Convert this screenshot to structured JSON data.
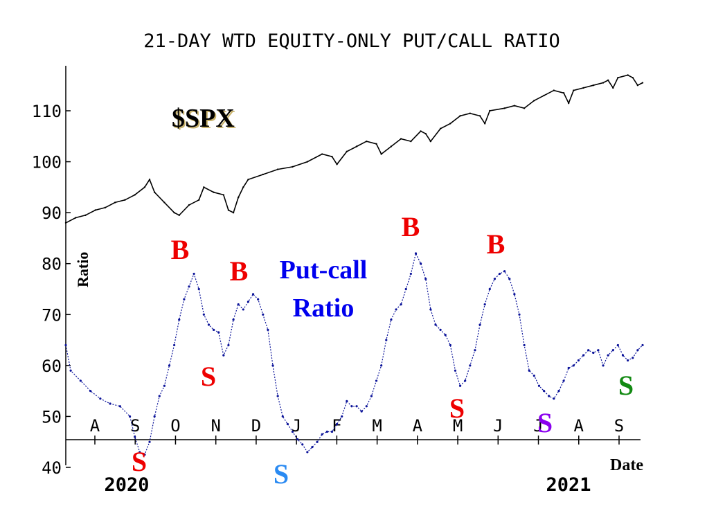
{
  "chart_data": {
    "type": "line",
    "title": "21-DAY WTD EQUITY-ONLY PUT/CALL RATIO",
    "ylabel": "Ratio",
    "xlabel": "Date",
    "ylim": [
      40,
      118
    ],
    "yticks": [
      40,
      50,
      60,
      70,
      80,
      90,
      100,
      110
    ],
    "x_months": [
      "A",
      "S",
      "O",
      "N",
      "D",
      "J",
      "F",
      "M",
      "A",
      "M",
      "J",
      "J",
      "A",
      "S"
    ],
    "years": [
      "2020",
      "2021"
    ],
    "grid": false,
    "series": [
      {
        "name": "$SPX",
        "color": "#000000",
        "points": [
          [
            0,
            88
          ],
          [
            2,
            89
          ],
          [
            4,
            89.5
          ],
          [
            6,
            90.5
          ],
          [
            8,
            91
          ],
          [
            10,
            92
          ],
          [
            12,
            92.5
          ],
          [
            14,
            93.5
          ],
          [
            16,
            95
          ],
          [
            17,
            96.5
          ],
          [
            18,
            94
          ],
          [
            20,
            92
          ],
          [
            22,
            90
          ],
          [
            23,
            89.5
          ],
          [
            25,
            91.5
          ],
          [
            27,
            92.5
          ],
          [
            28,
            95
          ],
          [
            30,
            94
          ],
          [
            32,
            93.5
          ],
          [
            33,
            90.5
          ],
          [
            34,
            90
          ],
          [
            35,
            93
          ],
          [
            36,
            95
          ],
          [
            37,
            96.5
          ],
          [
            40,
            97.5
          ],
          [
            43,
            98.5
          ],
          [
            46,
            99
          ],
          [
            49,
            100
          ],
          [
            52,
            101.5
          ],
          [
            54,
            101
          ],
          [
            55,
            99.5
          ],
          [
            57,
            102
          ],
          [
            59,
            103
          ],
          [
            61,
            104
          ],
          [
            63,
            103.5
          ],
          [
            64,
            101.5
          ],
          [
            66,
            103
          ],
          [
            68,
            104.5
          ],
          [
            70,
            104
          ],
          [
            72,
            106
          ],
          [
            73,
            105.5
          ],
          [
            74,
            104
          ],
          [
            76,
            106.5
          ],
          [
            78,
            107.5
          ],
          [
            80,
            109
          ],
          [
            82,
            109.5
          ],
          [
            84,
            109
          ],
          [
            85,
            107.5
          ],
          [
            86,
            110
          ],
          [
            89,
            110.5
          ],
          [
            91,
            111
          ],
          [
            93,
            110.5
          ],
          [
            95,
            112
          ],
          [
            97,
            113
          ],
          [
            99,
            114
          ],
          [
            101,
            113.5
          ],
          [
            102,
            111.5
          ],
          [
            103,
            114
          ],
          [
            105,
            114.5
          ],
          [
            107,
            115
          ],
          [
            109,
            115.5
          ],
          [
            110,
            116
          ],
          [
            111,
            114.5
          ],
          [
            112,
            116.5
          ],
          [
            114,
            117
          ],
          [
            115,
            116.5
          ],
          [
            116,
            115
          ],
          [
            117,
            115.5
          ]
        ]
      },
      {
        "name": "Put-call Ratio",
        "color": "#0b1399",
        "points": [
          [
            0,
            64
          ],
          [
            1,
            59
          ],
          [
            3,
            57
          ],
          [
            5,
            55
          ],
          [
            7,
            53.5
          ],
          [
            9,
            52.5
          ],
          [
            11,
            52
          ],
          [
            13,
            50
          ],
          [
            14,
            46
          ],
          [
            15,
            43
          ],
          [
            16,
            42.5
          ],
          [
            17,
            45
          ],
          [
            18,
            50
          ],
          [
            19,
            54
          ],
          [
            20,
            56
          ],
          [
            21,
            60
          ],
          [
            22,
            64
          ],
          [
            23,
            69
          ],
          [
            24,
            73
          ],
          [
            25,
            75.5
          ],
          [
            26,
            78
          ],
          [
            27,
            75
          ],
          [
            28,
            70
          ],
          [
            29,
            68
          ],
          [
            30,
            67
          ],
          [
            31,
            66.5
          ],
          [
            32,
            62
          ],
          [
            33,
            64
          ],
          [
            34,
            69
          ],
          [
            35,
            72
          ],
          [
            36,
            71
          ],
          [
            37,
            72.5
          ],
          [
            38,
            74
          ],
          [
            39,
            73
          ],
          [
            40,
            70
          ],
          [
            41,
            67
          ],
          [
            42,
            60
          ],
          [
            43,
            54
          ],
          [
            44,
            50
          ],
          [
            45,
            48.5
          ],
          [
            46,
            47
          ],
          [
            47,
            45.5
          ],
          [
            48,
            44.5
          ],
          [
            49,
            43
          ],
          [
            50,
            44
          ],
          [
            51,
            45
          ],
          [
            52,
            46.5
          ],
          [
            53,
            47
          ],
          [
            54,
            47
          ],
          [
            55,
            48.5
          ],
          [
            56,
            50
          ],
          [
            57,
            53
          ],
          [
            58,
            52
          ],
          [
            59,
            52
          ],
          [
            60,
            51
          ],
          [
            61,
            52
          ],
          [
            62,
            54
          ],
          [
            63,
            57
          ],
          [
            64,
            60
          ],
          [
            65,
            65
          ],
          [
            66,
            69
          ],
          [
            67,
            71
          ],
          [
            68,
            72
          ],
          [
            69,
            75
          ],
          [
            70,
            78
          ],
          [
            71,
            82
          ],
          [
            72,
            80
          ],
          [
            73,
            77
          ],
          [
            74,
            71
          ],
          [
            75,
            68
          ],
          [
            76,
            67
          ],
          [
            77,
            66
          ],
          [
            78,
            64
          ],
          [
            79,
            59
          ],
          [
            80,
            56
          ],
          [
            81,
            57
          ],
          [
            82,
            60
          ],
          [
            83,
            63
          ],
          [
            84,
            68
          ],
          [
            85,
            72
          ],
          [
            86,
            75
          ],
          [
            87,
            77
          ],
          [
            88,
            78
          ],
          [
            89,
            78.5
          ],
          [
            90,
            77
          ],
          [
            91,
            74
          ],
          [
            92,
            70
          ],
          [
            93,
            64
          ],
          [
            94,
            59
          ],
          [
            95,
            58
          ],
          [
            96,
            56
          ],
          [
            97,
            55
          ],
          [
            98,
            54
          ],
          [
            99,
            53.5
          ],
          [
            100,
            55
          ],
          [
            101,
            57
          ],
          [
            102,
            59.5
          ],
          [
            103,
            60
          ],
          [
            104,
            61
          ],
          [
            105,
            62
          ],
          [
            106,
            63
          ],
          [
            107,
            62.5
          ],
          [
            108,
            63
          ],
          [
            109,
            60
          ],
          [
            110,
            62
          ],
          [
            111,
            63
          ],
          [
            112,
            64
          ],
          [
            113,
            62
          ],
          [
            114,
            61
          ],
          [
            115,
            61.5
          ],
          [
            116,
            63
          ],
          [
            117,
            64
          ]
        ]
      }
    ],
    "annotations": [
      {
        "text": "$SPX",
        "color": "#000000"
      },
      {
        "text": "Put-call",
        "color": "#0000ee"
      },
      {
        "text": "Ratio",
        "color": "#0000ee"
      },
      {
        "text": "B",
        "color": "#ee0000"
      },
      {
        "text": "B",
        "color": "#ee0000"
      },
      {
        "text": "B",
        "color": "#ee0000"
      },
      {
        "text": "B",
        "color": "#ee0000"
      },
      {
        "text": "S",
        "color": "#ee0000"
      },
      {
        "text": "S",
        "color": "#ee0000"
      },
      {
        "text": "S",
        "color": "#ee0000"
      },
      {
        "text": "S",
        "color": "#2a8af2"
      },
      {
        "text": "S",
        "color": "#8a00ee"
      },
      {
        "text": "S",
        "color": "#138a13"
      }
    ]
  }
}
